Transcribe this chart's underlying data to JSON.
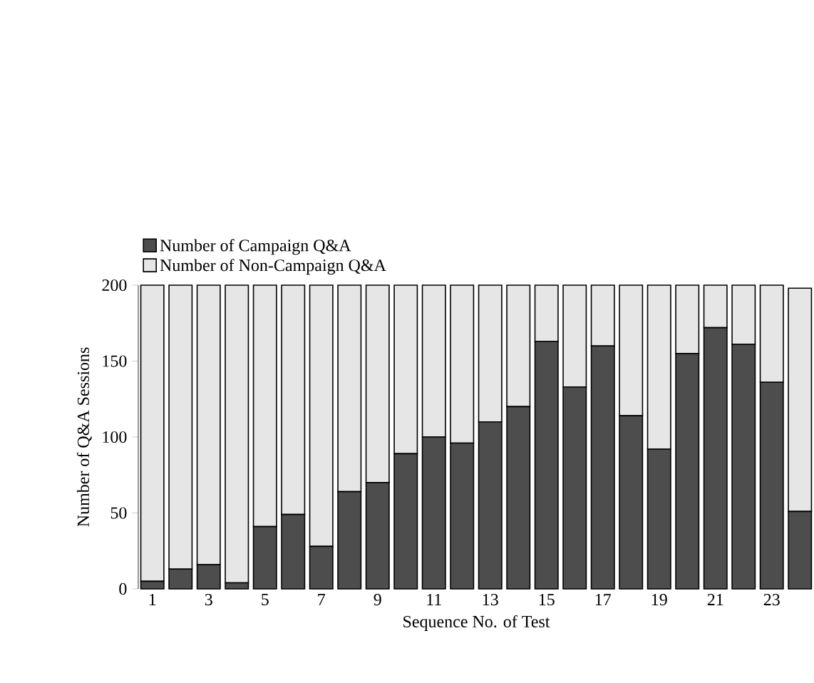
{
  "chart_data": {
    "type": "bar",
    "stacked": true,
    "xlabel": "Sequence No. of Test",
    "ylabel": "Number of Q&A Sessions",
    "categories": [
      "1",
      null,
      "3",
      null,
      "5",
      null,
      "7",
      null,
      "9",
      null,
      "11",
      null,
      "13",
      null,
      "15",
      null,
      "17",
      null,
      "19",
      null,
      "21",
      null,
      "23",
      null
    ],
    "series": [
      {
        "name": "Number of Campaign Q&A",
        "color": "#4d4d4d",
        "values": [
          5,
          13,
          16,
          4,
          41,
          49,
          28,
          64,
          70,
          89,
          100,
          96,
          110,
          120,
          163,
          133,
          160,
          114,
          92,
          155,
          172,
          161,
          136,
          51
        ]
      },
      {
        "name": "Number of Non-Campaign Q&A",
        "color": "#e6e6e6",
        "values": [
          195,
          187,
          184,
          196,
          159,
          151,
          172,
          136,
          130,
          111,
          100,
          104,
          90,
          80,
          37,
          67,
          40,
          86,
          108,
          45,
          28,
          39,
          64,
          147
        ]
      }
    ],
    "ylim": [
      0,
      200
    ],
    "yticks": [
      0,
      50,
      100,
      150,
      200
    ],
    "legend": "top left"
  }
}
